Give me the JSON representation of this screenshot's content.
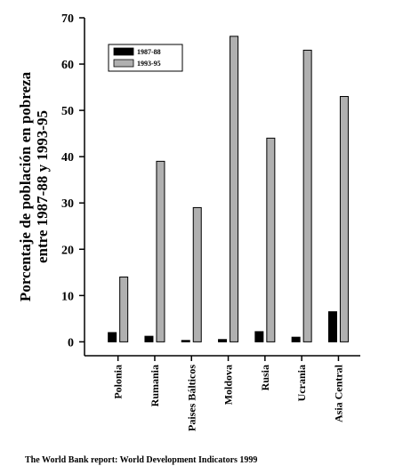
{
  "chart_data": {
    "type": "bar",
    "ylabel": [
      "Porcentaje de población en pobreza",
      "entre 1987-88 y 1993-95"
    ],
    "categories": [
      "Polonia",
      "Rumania",
      "Paises Bálticos",
      "Moldova",
      "Rusia",
      "Ucrania",
      "Asia Central"
    ],
    "series": [
      {
        "name": "1987-88",
        "color": "#000000",
        "values": [
          2,
          1.2,
          0.3,
          0.5,
          2.2,
          1,
          6.5
        ]
      },
      {
        "name": "1993-95",
        "color": "#b0b0b0",
        "values": [
          14,
          39,
          29,
          66,
          44,
          63,
          53
        ]
      }
    ],
    "ylim": [
      -3,
      70
    ],
    "yticks": [
      0,
      10,
      20,
      30,
      40,
      50,
      60,
      70
    ],
    "legend": "upper left",
    "source": "The World Bank report: World Development Indicators 1999"
  }
}
